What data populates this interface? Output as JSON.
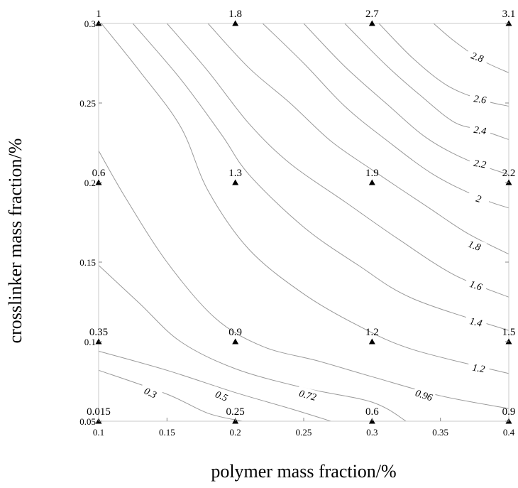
{
  "chart_data": {
    "type": "contour",
    "xlabel": "polymer mass fraction/%",
    "ylabel": "crosslinker mass fraction/%",
    "xlim": [
      0.1,
      0.4
    ],
    "ylim": [
      0.05,
      0.3
    ],
    "x_ticks": [
      "0.1",
      "0.15",
      "0.2",
      "0.25",
      "0.3",
      "0.35",
      "0.4"
    ],
    "y_ticks": [
      "0.05",
      "0.1",
      "0.15",
      "0.2",
      "0.25",
      "0.3"
    ],
    "points": [
      {
        "x": 0.1,
        "y": 0.3,
        "label": "1"
      },
      {
        "x": 0.2,
        "y": 0.3,
        "label": "1.8"
      },
      {
        "x": 0.3,
        "y": 0.3,
        "label": "2.7"
      },
      {
        "x": 0.4,
        "y": 0.3,
        "label": "3.1"
      },
      {
        "x": 0.1,
        "y": 0.2,
        "label": "0.6"
      },
      {
        "x": 0.2,
        "y": 0.2,
        "label": "1.3"
      },
      {
        "x": 0.3,
        "y": 0.2,
        "label": "1.9"
      },
      {
        "x": 0.4,
        "y": 0.2,
        "label": "2.2"
      },
      {
        "x": 0.1,
        "y": 0.1,
        "label": "0.35"
      },
      {
        "x": 0.2,
        "y": 0.1,
        "label": "0.9"
      },
      {
        "x": 0.3,
        "y": 0.1,
        "label": "1.2"
      },
      {
        "x": 0.4,
        "y": 0.1,
        "label": "1.5"
      },
      {
        "x": 0.1,
        "y": 0.05,
        "label": "0.015"
      },
      {
        "x": 0.2,
        "y": 0.05,
        "label": "0.25"
      },
      {
        "x": 0.3,
        "y": 0.05,
        "label": "0.6"
      },
      {
        "x": 0.4,
        "y": 0.05,
        "label": "0.9"
      }
    ],
    "contours": [
      {
        "level": "0.3",
        "pts": [
          [
            0.1,
            0.082
          ],
          [
            0.15,
            0.067
          ],
          [
            0.18,
            0.055
          ],
          [
            0.205,
            0.05
          ]
        ],
        "label_at": [
          0.138,
          0.068
        ],
        "label_rot": 25
      },
      {
        "level": "0.5",
        "pts": [
          [
            0.1,
            0.094
          ],
          [
            0.15,
            0.082
          ],
          [
            0.2,
            0.068
          ],
          [
            0.24,
            0.058
          ],
          [
            0.27,
            0.05
          ]
        ],
        "label_at": [
          0.19,
          0.066
        ],
        "label_rot": 22
      },
      {
        "level": "0.72",
        "pts": [
          [
            0.1,
            0.148
          ],
          [
            0.13,
            0.124
          ],
          [
            0.16,
            0.1
          ],
          [
            0.2,
            0.083
          ],
          [
            0.25,
            0.071
          ],
          [
            0.3,
            0.062
          ],
          [
            0.325,
            0.05
          ]
        ],
        "label_at": [
          0.253,
          0.0665
        ],
        "label_rot": 15
      },
      {
        "level": "0.96",
        "pts": [
          [
            0.1,
            0.22
          ],
          [
            0.12,
            0.19
          ],
          [
            0.15,
            0.15
          ],
          [
            0.185,
            0.115
          ],
          [
            0.22,
            0.097
          ],
          [
            0.26,
            0.088
          ],
          [
            0.3,
            0.078
          ],
          [
            0.35,
            0.066
          ],
          [
            0.4,
            0.058
          ]
        ],
        "label_at": [
          0.338,
          0.0665
        ],
        "label_rot": 18
      },
      {
        "level": "1.2",
        "pts": [
          [
            0.102,
            0.3
          ],
          [
            0.13,
            0.27
          ],
          [
            0.16,
            0.235
          ],
          [
            0.18,
            0.195
          ],
          [
            0.21,
            0.158
          ],
          [
            0.25,
            0.13
          ],
          [
            0.29,
            0.11
          ],
          [
            0.33,
            0.095
          ],
          [
            0.4,
            0.08
          ]
        ],
        "label_at": [
          0.378,
          0.0835
        ],
        "label_rot": 10
      },
      {
        "level": "1.4",
        "pts": [
          [
            0.125,
            0.3
          ],
          [
            0.16,
            0.265
          ],
          [
            0.19,
            0.23
          ],
          [
            0.21,
            0.205
          ],
          [
            0.25,
            0.172
          ],
          [
            0.29,
            0.148
          ],
          [
            0.33,
            0.127
          ],
          [
            0.4,
            0.107
          ]
        ],
        "label_at": [
          0.376,
          0.1125
        ],
        "label_rot": 13
      },
      {
        "level": "1.6",
        "pts": [
          [
            0.15,
            0.3
          ],
          [
            0.18,
            0.27
          ],
          [
            0.21,
            0.237
          ],
          [
            0.24,
            0.212
          ],
          [
            0.28,
            0.188
          ],
          [
            0.32,
            0.164
          ],
          [
            0.36,
            0.142
          ],
          [
            0.4,
            0.128
          ]
        ],
        "label_at": [
          0.376,
          0.1355
        ],
        "label_rot": 18
      },
      {
        "level": "1.8",
        "pts": [
          [
            0.18,
            0.3
          ],
          [
            0.21,
            0.272
          ],
          [
            0.24,
            0.25
          ],
          [
            0.27,
            0.226
          ],
          [
            0.3,
            0.208
          ],
          [
            0.34,
            0.185
          ],
          [
            0.37,
            0.168
          ],
          [
            0.4,
            0.155
          ]
        ],
        "label_at": [
          0.375,
          0.1605
        ],
        "label_rot": 20
      },
      {
        "level": "2",
        "pts": [
          [
            0.22,
            0.3
          ],
          [
            0.25,
            0.275
          ],
          [
            0.28,
            0.248
          ],
          [
            0.31,
            0.227
          ],
          [
            0.345,
            0.205
          ],
          [
            0.38,
            0.19
          ],
          [
            0.4,
            0.184
          ]
        ],
        "label_at": [
          0.378,
          0.19
        ],
        "label_rot": 16
      },
      {
        "level": "2.2",
        "pts": [
          [
            0.25,
            0.3
          ],
          [
            0.28,
            0.273
          ],
          [
            0.31,
            0.25
          ],
          [
            0.34,
            0.228
          ],
          [
            0.37,
            0.214
          ],
          [
            0.4,
            0.205
          ]
        ],
        "label_at": [
          0.379,
          0.212
        ],
        "label_rot": 10
      },
      {
        "level": "2.4",
        "pts": [
          [
            0.28,
            0.3
          ],
          [
            0.31,
            0.274
          ],
          [
            0.335,
            0.255
          ],
          [
            0.36,
            0.238
          ],
          [
            0.38,
            0.233
          ],
          [
            0.4,
            0.227
          ]
        ],
        "label_at": [
          0.379,
          0.233
        ],
        "label_rot": 8
      },
      {
        "level": "2.6",
        "pts": [
          [
            0.305,
            0.3
          ],
          [
            0.33,
            0.278
          ],
          [
            0.355,
            0.261
          ],
          [
            0.38,
            0.252
          ],
          [
            0.4,
            0.248
          ]
        ],
        "label_at": [
          0.379,
          0.2525
        ],
        "label_rot": 8
      },
      {
        "level": "2.8",
        "pts": [
          [
            0.345,
            0.3
          ],
          [
            0.36,
            0.289
          ],
          [
            0.38,
            0.277
          ],
          [
            0.4,
            0.269
          ]
        ],
        "label_at": [
          0.377,
          0.279
        ],
        "label_rot": 20
      }
    ],
    "grid": false,
    "marker": "triangle"
  }
}
